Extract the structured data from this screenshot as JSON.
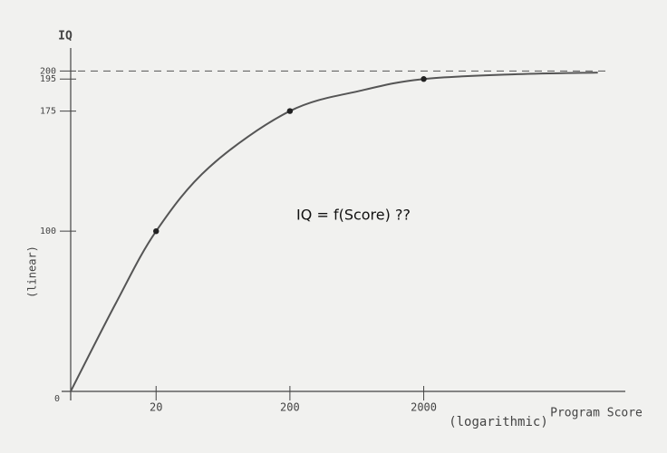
{
  "chart_data": {
    "type": "line",
    "title": "IQ = f(Score) ??",
    "y_label": "IQ",
    "y_scale_label": "(linear)",
    "x_label": "Program Score",
    "x_scale_label": "(logarithmic)",
    "xscale": "log",
    "xlim": [
      4.6,
      47000
    ],
    "ylim": [
      0,
      220
    ],
    "xticks": [
      20,
      200,
      2000
    ],
    "yticks": [
      0,
      100,
      175,
      195,
      200
    ],
    "asymptote": 200,
    "color": "#555555",
    "series": [
      {
        "name": "curve",
        "x": [
          4.6,
          10,
          20,
          50,
          200,
          700,
          2000,
          10000,
          40000
        ],
        "values": [
          0,
          55,
          100,
          140,
          175,
          188,
          195,
          198,
          199
        ]
      },
      {
        "name": "points",
        "x": [
          20,
          200,
          2000
        ],
        "values": [
          100,
          175,
          195
        ]
      }
    ]
  }
}
